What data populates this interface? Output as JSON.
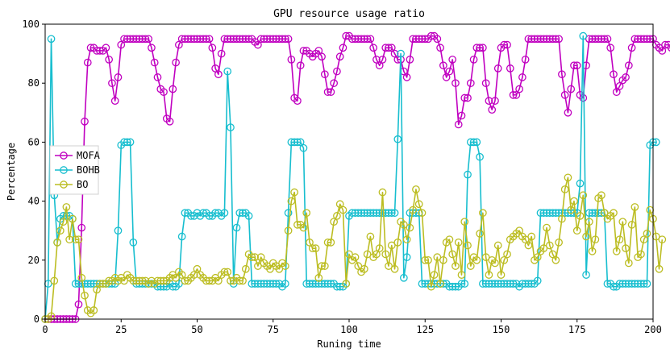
{
  "chart_data": {
    "type": "line",
    "title": "GPU resource usage ratio",
    "xlabel": "Runing time",
    "ylabel": "Percentage",
    "xlim": [
      0,
      200
    ],
    "ylim": [
      0,
      100
    ],
    "xticks": [
      0,
      25,
      50,
      75,
      100,
      125,
      150,
      175,
      200
    ],
    "yticks": [
      0,
      20,
      40,
      60,
      80,
      100
    ],
    "grid": false,
    "legend_position": "center-left",
    "marker": "open-circle",
    "series": [
      {
        "name": "MOFA",
        "color": "#c000c0",
        "values": [
          0,
          0,
          0,
          0,
          0,
          0,
          0,
          0,
          0,
          0,
          0,
          5,
          31,
          67,
          87,
          92,
          92,
          91,
          91,
          91,
          92,
          88,
          80,
          74,
          82,
          93,
          95,
          95,
          95,
          95,
          95,
          95,
          95,
          95,
          95,
          92,
          87,
          82,
          78,
          77,
          68,
          67,
          78,
          87,
          93,
          95,
          95,
          95,
          95,
          95,
          95,
          95,
          95,
          95,
          95,
          92,
          85,
          83,
          90,
          95,
          95,
          95,
          95,
          95,
          95,
          95,
          95,
          95,
          95,
          94,
          93,
          95,
          95,
          95,
          95,
          95,
          95,
          95,
          95,
          95,
          95,
          88,
          75,
          74,
          86,
          91,
          91,
          90,
          89,
          90,
          91,
          89,
          83,
          77,
          77,
          80,
          84,
          89,
          92,
          96,
          96,
          95,
          95,
          95,
          95,
          95,
          95,
          95,
          92,
          88,
          86,
          88,
          92,
          92,
          92,
          90,
          88,
          88,
          84,
          82,
          88,
          95,
          95,
          95,
          95,
          95,
          95,
          96,
          96,
          95,
          92,
          86,
          82,
          84,
          88,
          80,
          66,
          69,
          75,
          75,
          80,
          88,
          92,
          92,
          92,
          80,
          74,
          71,
          74,
          85,
          92,
          93,
          93,
          85,
          76,
          76,
          78,
          82,
          88,
          95,
          95,
          95,
          95,
          95,
          95,
          95,
          95,
          95,
          95,
          95,
          83,
          76,
          70,
          78,
          86,
          86,
          76,
          75,
          86,
          95,
          95,
          95,
          95,
          95,
          95,
          95,
          92,
          83,
          77,
          79,
          81,
          82,
          86,
          92,
          95,
          95,
          95,
          95,
          95,
          95,
          95,
          93,
          92,
          91,
          93,
          93,
          92,
          91
        ]
      },
      {
        "name": "BOHB",
        "color": "#17becf",
        "values": [
          0,
          12,
          95,
          42,
          26,
          34,
          35,
          35,
          35,
          34,
          12,
          12,
          12,
          12,
          12,
          12,
          12,
          12,
          12,
          12,
          12,
          12,
          12,
          12,
          30,
          59,
          60,
          60,
          60,
          26,
          12,
          12,
          12,
          12,
          12,
          12,
          12,
          11,
          11,
          11,
          11,
          12,
          11,
          11,
          12,
          28,
          36,
          36,
          35,
          35,
          36,
          35,
          36,
          36,
          35,
          35,
          36,
          36,
          35,
          36,
          84,
          65,
          12,
          31,
          36,
          36,
          36,
          35,
          12,
          12,
          12,
          12,
          12,
          12,
          12,
          12,
          12,
          12,
          11,
          12,
          36,
          60,
          60,
          60,
          60,
          58,
          12,
          12,
          12,
          12,
          12,
          12,
          12,
          12,
          12,
          12,
          11,
          11,
          11,
          12,
          35,
          36,
          36,
          36,
          36,
          36,
          36,
          36,
          36,
          36,
          36,
          36,
          36,
          36,
          36,
          36,
          61,
          90,
          14,
          21,
          36,
          36,
          36,
          36,
          12,
          12,
          12,
          12,
          12,
          12,
          12,
          12,
          12,
          11,
          11,
          11,
          11,
          12,
          12,
          49,
          60,
          60,
          60,
          55,
          12,
          12,
          12,
          12,
          12,
          12,
          12,
          12,
          12,
          12,
          12,
          12,
          11,
          12,
          12,
          12,
          12,
          12,
          13,
          36,
          36,
          36,
          36,
          36,
          36,
          36,
          36,
          36,
          36,
          36,
          36,
          36,
          46,
          96,
          15,
          36,
          36,
          36,
          36,
          36,
          36,
          12,
          12,
          11,
          11,
          12,
          12,
          12,
          12,
          12,
          12,
          12,
          12,
          12,
          12,
          59,
          60,
          60
        ]
      },
      {
        "name": "BO",
        "color": "#bcbd22",
        "values": [
          0,
          0,
          1,
          13,
          26,
          30,
          33,
          38,
          27,
          34,
          27,
          27,
          14,
          8,
          3,
          2,
          3,
          10,
          12,
          12,
          12,
          13,
          13,
          14,
          13,
          14,
          13,
          15,
          14,
          13,
          13,
          13,
          13,
          13,
          12,
          13,
          12,
          13,
          13,
          13,
          13,
          14,
          15,
          14,
          16,
          15,
          13,
          13,
          14,
          15,
          17,
          15,
          14,
          13,
          13,
          13,
          14,
          13,
          15,
          16,
          16,
          13,
          13,
          14,
          13,
          13,
          17,
          22,
          21,
          21,
          18,
          21,
          19,
          18,
          17,
          19,
          18,
          17,
          19,
          18,
          30,
          40,
          43,
          32,
          32,
          31,
          36,
          26,
          24,
          24,
          14,
          18,
          18,
          26,
          26,
          33,
          35,
          39,
          37,
          12,
          22,
          20,
          21,
          18,
          16,
          17,
          22,
          28,
          21,
          22,
          24,
          43,
          22,
          18,
          25,
          17,
          26,
          33,
          32,
          27,
          31,
          37,
          44,
          39,
          36,
          20,
          20,
          11,
          15,
          21,
          12,
          20,
          26,
          27,
          22,
          18,
          26,
          15,
          33,
          25,
          18,
          21,
          20,
          29,
          36,
          21,
          15,
          20,
          19,
          25,
          15,
          20,
          22,
          27,
          28,
          29,
          30,
          28,
          27,
          25,
          28,
          20,
          21,
          23,
          24,
          31,
          25,
          22,
          20,
          26,
          34,
          44,
          48,
          37,
          40,
          30,
          35,
          42,
          28,
          33,
          23,
          27,
          41,
          42,
          36,
          34,
          35,
          36,
          23,
          27,
          33,
          24,
          19,
          32,
          38,
          21,
          22,
          27,
          29,
          37,
          34,
          28,
          17,
          27
        ]
      }
    ]
  }
}
